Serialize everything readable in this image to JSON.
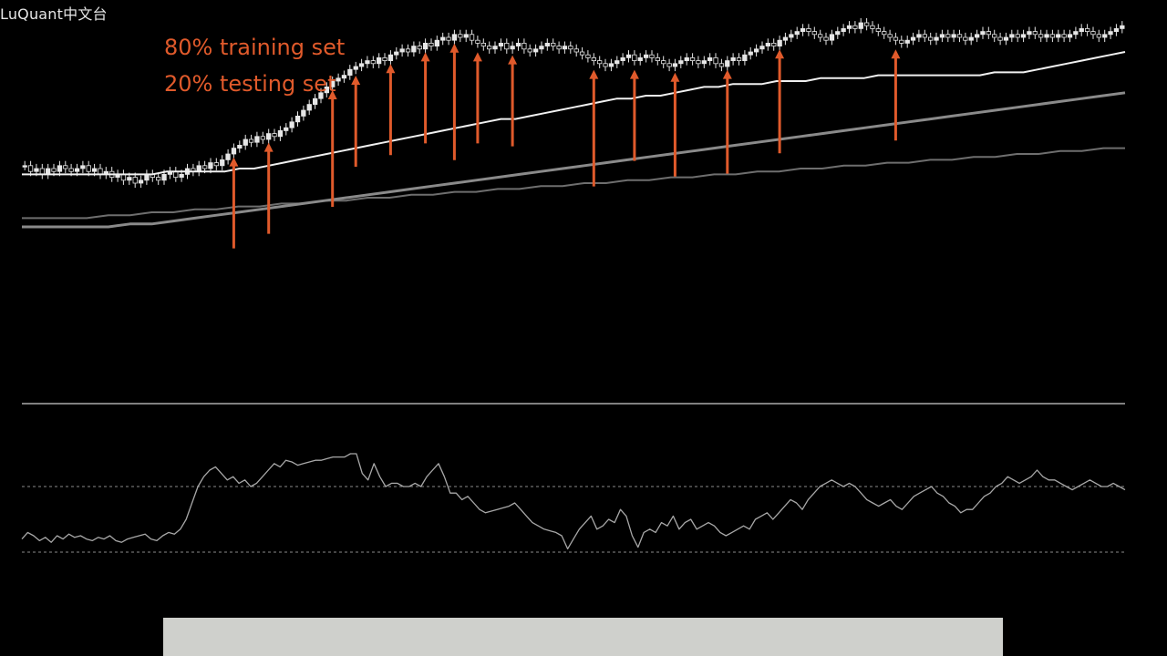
{
  "watermark": "LuQuant中文台",
  "annotations": [
    "80% training set",
    "20% testing set"
  ],
  "colors": {
    "background": "#000000",
    "annotation": "#e05a2b",
    "arrow": "#e05a2b",
    "candle_up": "#e6e6e6",
    "candle_down": "#e6e6e6",
    "ma_fast": "#f0f0f0",
    "ma_slow": "#8a8a8a",
    "ma_long": "#6e6e6e",
    "oscillator": "#a8a8a8",
    "separator": "#808080",
    "dashed_level": "#8a8a8a",
    "bottom_bar": "#cfd0cc"
  },
  "chart_data": [
    {
      "type": "line",
      "subtype": "candlestick-with-moving-averages",
      "title": "",
      "xlabel": "",
      "ylabel": "",
      "grid": false,
      "ylim": [
        0,
        100
      ],
      "bars": 190,
      "close": [
        51,
        49,
        50,
        48,
        50,
        49,
        51,
        50,
        49,
        50,
        51,
        49,
        50,
        48,
        49,
        47,
        48,
        46,
        47,
        45,
        46,
        48,
        47,
        46,
        48,
        49,
        47,
        48,
        50,
        49,
        51,
        50,
        52,
        51,
        53,
        55,
        57,
        58,
        60,
        59,
        61,
        60,
        62,
        61,
        63,
        64,
        66,
        68,
        70,
        72,
        74,
        76,
        78,
        80,
        81,
        82,
        84,
        85,
        86,
        87,
        86,
        88,
        87,
        89,
        90,
        91,
        90,
        92,
        91,
        93,
        92,
        94,
        95,
        94,
        96,
        95,
        96,
        94,
        93,
        92,
        91,
        92,
        93,
        91,
        92,
        93,
        91,
        90,
        91,
        92,
        93,
        92,
        91,
        92,
        91,
        90,
        89,
        88,
        87,
        86,
        85,
        86,
        87,
        88,
        89,
        87,
        88,
        89,
        88,
        87,
        86,
        85,
        86,
        87,
        88,
        87,
        86,
        87,
        88,
        86,
        85,
        87,
        88,
        87,
        89,
        90,
        91,
        92,
        93,
        92,
        94,
        95,
        96,
        97,
        98,
        97,
        96,
        95,
        94,
        96,
        97,
        98,
        99,
        98,
        100,
        99,
        98,
        97,
        96,
        95,
        94,
        93,
        94,
        95,
        96,
        95,
        94,
        95,
        96,
        95,
        96,
        95,
        94,
        95,
        96,
        97,
        96,
        95,
        94,
        95,
        96,
        95,
        96,
        97,
        96,
        95,
        96,
        95,
        96,
        95,
        96,
        97,
        98,
        97,
        96,
        95,
        96,
        97,
        98,
        99
      ],
      "series": [
        {
          "values": [
            48,
            48,
            48,
            48,
            48,
            48,
            48,
            48,
            48,
            48,
            49,
            49,
            49,
            49,
            49,
            50,
            50,
            51,
            52,
            53,
            54,
            55,
            56,
            57,
            58,
            59,
            60,
            61,
            62,
            63,
            64,
            65,
            66,
            67,
            67,
            68,
            69,
            70,
            71,
            72,
            73,
            74,
            74,
            75,
            75,
            76,
            77,
            78,
            78,
            79,
            79,
            79,
            80,
            80,
            80,
            81,
            81,
            81,
            81,
            82,
            82,
            82,
            82,
            82,
            82,
            82,
            82,
            83,
            83,
            83,
            84,
            85,
            86,
            87,
            88,
            89,
            90
          ]
        },
        {
          "values": [
            30,
            30,
            30,
            30,
            30,
            31,
            31,
            32,
            33,
            34,
            35,
            36,
            37,
            38,
            39,
            40,
            41,
            42,
            43,
            44,
            45,
            46,
            47,
            48,
            49,
            50,
            51,
            52,
            53,
            54,
            55,
            56,
            57,
            58,
            59,
            60,
            61,
            62,
            63,
            64,
            65,
            66,
            67,
            68,
            69,
            70,
            71,
            72,
            73,
            74,
            75,
            76
          ]
        },
        {
          "values": [
            33,
            33,
            33,
            33,
            34,
            34,
            35,
            35,
            36,
            36,
            37,
            37,
            38,
            38,
            39,
            39,
            40,
            40,
            41,
            41,
            42,
            42,
            43,
            43,
            44,
            44,
            45,
            45,
            46,
            46,
            47,
            47,
            48,
            48,
            49,
            49,
            50,
            50,
            51,
            51,
            52,
            52,
            53,
            53,
            54,
            54,
            55,
            55,
            56,
            56,
            57,
            57
          ]
        }
      ],
      "arrows_at_bar": [
        36,
        42,
        53,
        57,
        63,
        69,
        74,
        78,
        84,
        98,
        105,
        112,
        121,
        130,
        150
      ]
    },
    {
      "type": "line",
      "subtype": "oscillator",
      "title": "",
      "xlabel": "",
      "ylabel": "",
      "grid": false,
      "ylim": [
        0,
        100
      ],
      "levels": [
        70,
        30
      ],
      "x": [
        0,
        1,
        2,
        3,
        4,
        5,
        6,
        7,
        8,
        9,
        10,
        11,
        12,
        13,
        14,
        15,
        16,
        17,
        18,
        19,
        20,
        21,
        22,
        23,
        24,
        25,
        26,
        27,
        28,
        29,
        30,
        31,
        32,
        33,
        34,
        35,
        36,
        37,
        38,
        39,
        40,
        41,
        42,
        43,
        44,
        45,
        46,
        47,
        48,
        49,
        50,
        51,
        52,
        53,
        54,
        55,
        56,
        57,
        58,
        59,
        60,
        61,
        62,
        63,
        64,
        65,
        66,
        67,
        68,
        69,
        70,
        71,
        72,
        73,
        74,
        75,
        76,
        77,
        78,
        79,
        80,
        81,
        82,
        83,
        84,
        85,
        86,
        87,
        88,
        89,
        90,
        91,
        92,
        93,
        94,
        95,
        96,
        97,
        98,
        99,
        100,
        101,
        102,
        103,
        104,
        105,
        106,
        107,
        108,
        109,
        110,
        111,
        112,
        113,
        114,
        115,
        116,
        117,
        118,
        119,
        120,
        121,
        122,
        123,
        124,
        125,
        126,
        127,
        128,
        129,
        130,
        131,
        132,
        133,
        134,
        135,
        136,
        137,
        138,
        139,
        140,
        141,
        142,
        143,
        144,
        145,
        146,
        147,
        148,
        149,
        150,
        151,
        152,
        153,
        154,
        155,
        156,
        157,
        158,
        159,
        160,
        161,
        162,
        163,
        164,
        165,
        166,
        167,
        168,
        169,
        170,
        171,
        172,
        173,
        174,
        175,
        176,
        177,
        178,
        179,
        180,
        181,
        182,
        183,
        184,
        185,
        186,
        187,
        188
      ],
      "values": [
        38,
        42,
        40,
        37,
        39,
        36,
        40,
        38,
        41,
        39,
        40,
        38,
        37,
        39,
        38,
        40,
        37,
        36,
        38,
        39,
        40,
        41,
        38,
        37,
        40,
        42,
        41,
        44,
        50,
        60,
        70,
        76,
        80,
        82,
        78,
        74,
        76,
        72,
        74,
        70,
        72,
        76,
        80,
        84,
        82,
        86,
        85,
        83,
        84,
        85,
        86,
        86,
        87,
        88,
        88,
        88,
        90,
        90,
        78,
        74,
        84,
        76,
        70,
        72,
        72,
        70,
        70,
        72,
        70,
        76,
        80,
        84,
        76,
        66,
        66,
        62,
        64,
        60,
        56,
        54,
        55,
        56,
        57,
        58,
        60,
        56,
        52,
        48,
        46,
        44,
        43,
        42,
        40,
        32,
        38,
        44,
        48,
        52,
        44,
        46,
        50,
        48,
        56,
        52,
        40,
        33,
        42,
        44,
        42,
        48,
        46,
        52,
        44,
        48,
        50,
        44,
        46,
        48,
        46,
        42,
        40,
        42,
        44,
        46,
        44,
        50,
        52,
        54,
        50,
        54,
        58,
        62,
        60,
        56,
        62,
        66,
        70,
        72,
        74,
        72,
        70,
        72,
        70,
        66,
        62,
        60,
        58,
        60,
        62,
        58,
        56,
        60,
        64,
        66,
        68,
        70,
        66,
        64,
        60,
        58,
        54,
        56,
        56,
        60,
        64,
        66,
        70,
        72,
        76,
        74,
        72,
        74,
        76,
        80,
        76,
        74,
        74,
        72,
        70,
        68,
        70,
        72,
        74,
        72,
        70,
        70,
        72,
        70,
        68
      ]
    }
  ]
}
